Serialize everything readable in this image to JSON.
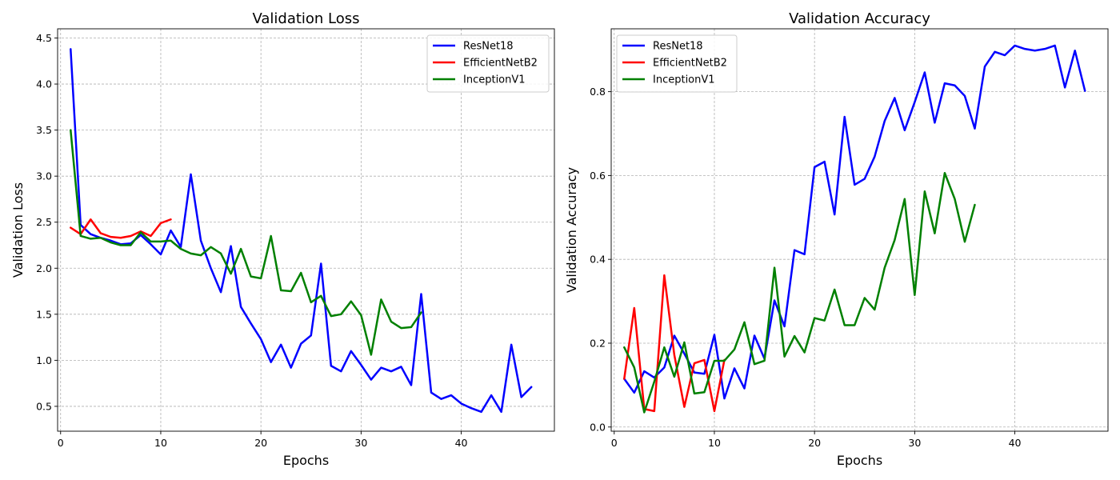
{
  "chart_data": [
    {
      "type": "line",
      "title": "Validation Loss",
      "xlabel": "Epochs",
      "ylabel": "Validation Loss",
      "xlim": [
        -0.3,
        49.3
      ],
      "ylim": [
        0.23,
        4.6
      ],
      "xticks": [
        0,
        10,
        20,
        30,
        40
      ],
      "yticks": [
        0.5,
        1.0,
        1.5,
        2.0,
        2.5,
        3.0,
        3.5,
        4.0,
        4.5
      ],
      "ytick_format": 1,
      "grid": true,
      "legend": "top-right",
      "series": [
        {
          "name": "ResNet18",
          "color": "#0000ff",
          "x": [
            1,
            2,
            3,
            4,
            5,
            6,
            7,
            8,
            9,
            10,
            11,
            12,
            13,
            14,
            15,
            16,
            17,
            18,
            19,
            20,
            21,
            22,
            23,
            24,
            25,
            26,
            27,
            28,
            29,
            30,
            31,
            32,
            33,
            34,
            35,
            36,
            37,
            38,
            39,
            40,
            41,
            42,
            43,
            44,
            45,
            46,
            47
          ],
          "values": [
            4.38,
            2.47,
            2.37,
            2.33,
            2.3,
            2.26,
            2.27,
            2.36,
            2.26,
            2.15,
            2.41,
            2.23,
            3.02,
            2.3,
            2.0,
            1.74,
            2.24,
            1.58,
            1.4,
            1.23,
            0.98,
            1.17,
            0.92,
            1.18,
            1.27,
            2.05,
            0.94,
            0.88,
            1.1,
            0.95,
            0.79,
            0.92,
            0.88,
            0.93,
            0.73,
            1.72,
            0.65,
            0.58,
            0.62,
            0.53,
            0.48,
            0.44,
            0.62,
            0.44,
            1.17,
            0.6,
            0.71
          ]
        },
        {
          "name": "EfficientNetB2",
          "color": "#ff0000",
          "x": [
            1,
            2,
            3,
            4,
            5,
            6,
            7,
            8,
            9,
            10,
            11
          ],
          "values": [
            2.44,
            2.37,
            2.53,
            2.38,
            2.34,
            2.33,
            2.35,
            2.4,
            2.35,
            2.49,
            2.53
          ]
        },
        {
          "name": "InceptionV1",
          "color": "#008000",
          "x": [
            1,
            2,
            3,
            4,
            5,
            6,
            7,
            8,
            9,
            10,
            11,
            12,
            13,
            14,
            15,
            16,
            17,
            18,
            19,
            20,
            21,
            22,
            23,
            24,
            25,
            26,
            27,
            28,
            29,
            30,
            31,
            32,
            33,
            34,
            35,
            36
          ],
          "values": [
            3.5,
            2.35,
            2.32,
            2.33,
            2.28,
            2.25,
            2.25,
            2.39,
            2.29,
            2.29,
            2.3,
            2.21,
            2.16,
            2.14,
            2.23,
            2.16,
            1.94,
            2.21,
            1.91,
            1.89,
            2.35,
            1.76,
            1.75,
            1.95,
            1.63,
            1.7,
            1.48,
            1.5,
            1.64,
            1.49,
            1.06,
            1.66,
            1.42,
            1.35,
            1.36,
            1.52
          ]
        }
      ]
    },
    {
      "type": "line",
      "title": "Validation Accuracy",
      "xlabel": "Epochs",
      "ylabel": "Validation Accuracy",
      "xlim": [
        -0.3,
        49.3
      ],
      "ylim": [
        -0.01,
        0.95
      ],
      "xticks": [
        0,
        10,
        20,
        30,
        40
      ],
      "yticks": [
        0.0,
        0.2,
        0.4,
        0.6,
        0.8
      ],
      "ytick_format": 1,
      "grid": true,
      "legend": "top-left",
      "series": [
        {
          "name": "ResNet18",
          "color": "#0000ff",
          "x": [
            1,
            2,
            3,
            4,
            5,
            6,
            7,
            8,
            9,
            10,
            11,
            12,
            13,
            14,
            15,
            16,
            17,
            18,
            19,
            20,
            21,
            22,
            23,
            24,
            25,
            26,
            27,
            28,
            29,
            30,
            31,
            32,
            33,
            34,
            35,
            36,
            37,
            38,
            39,
            40,
            41,
            42,
            43,
            44,
            45,
            46,
            47
          ],
          "values": [
            0.115,
            0.082,
            0.133,
            0.118,
            0.142,
            0.218,
            0.175,
            0.13,
            0.127,
            0.22,
            0.068,
            0.14,
            0.092,
            0.218,
            0.163,
            0.302,
            0.24,
            0.422,
            0.412,
            0.62,
            0.633,
            0.507,
            0.74,
            0.578,
            0.592,
            0.645,
            0.73,
            0.785,
            0.708,
            0.775,
            0.846,
            0.726,
            0.82,
            0.815,
            0.79,
            0.712,
            0.86,
            0.895,
            0.887,
            0.91,
            0.902,
            0.898,
            0.902,
            0.91,
            0.81,
            0.898,
            0.802
          ]
        },
        {
          "name": "EfficientNetB2",
          "color": "#ff0000",
          "x": [
            1,
            2,
            3,
            4,
            5,
            6,
            7,
            8,
            9,
            10,
            11
          ],
          "values": [
            0.115,
            0.284,
            0.043,
            0.038,
            0.362,
            0.172,
            0.048,
            0.152,
            0.16,
            0.038,
            0.16
          ]
        },
        {
          "name": "InceptionV1",
          "color": "#008000",
          "x": [
            1,
            2,
            3,
            4,
            5,
            6,
            7,
            8,
            9,
            10,
            11,
            12,
            13,
            14,
            15,
            16,
            17,
            18,
            19,
            20,
            21,
            22,
            23,
            24,
            25,
            26,
            27,
            28,
            29,
            30,
            31,
            32,
            33,
            34,
            35,
            36
          ],
          "values": [
            0.19,
            0.142,
            0.035,
            0.108,
            0.19,
            0.12,
            0.202,
            0.08,
            0.083,
            0.158,
            0.158,
            0.185,
            0.25,
            0.15,
            0.158,
            0.38,
            0.168,
            0.217,
            0.178,
            0.26,
            0.254,
            0.328,
            0.243,
            0.243,
            0.308,
            0.28,
            0.38,
            0.446,
            0.544,
            0.315,
            0.562,
            0.462,
            0.606,
            0.544,
            0.442,
            0.53
          ]
        }
      ]
    }
  ]
}
